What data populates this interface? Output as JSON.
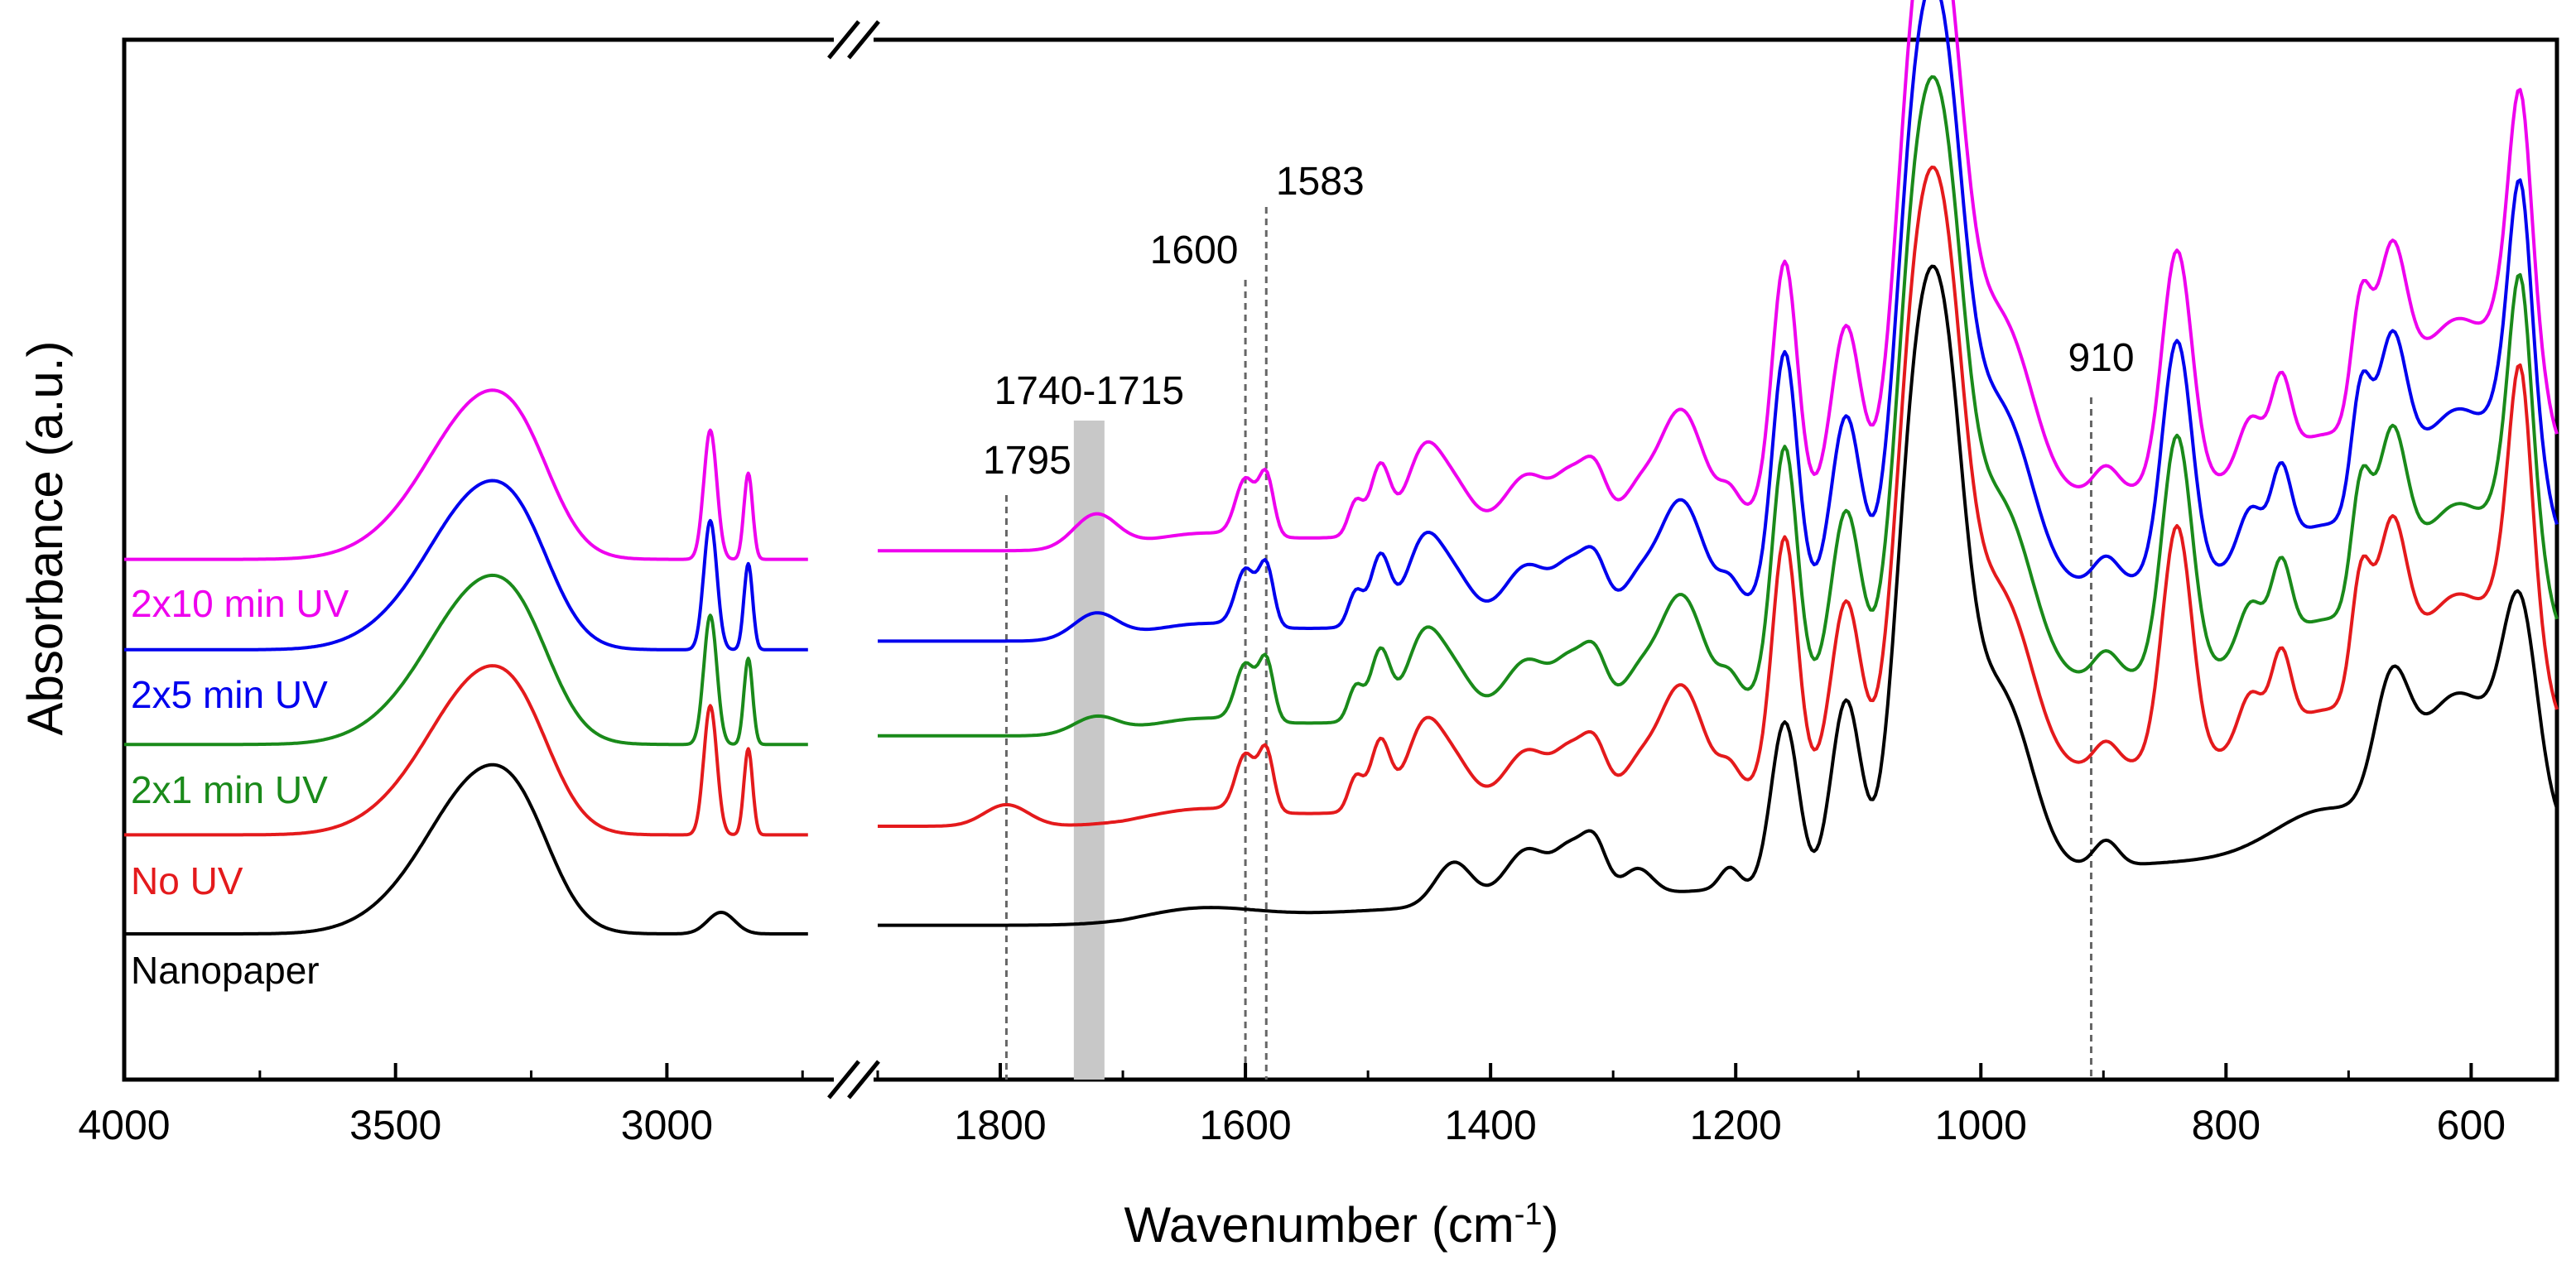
{
  "chart_data": {
    "type": "line",
    "xlabel": "Wavenumber (cm",
    "xlabel_sup": "-1",
    "xlabel_end": ")",
    "ylabel": "Absorbance (a.u.)",
    "x_reversed": true,
    "x_axis_break": [
      2700,
      1900
    ],
    "xlim_left": [
      4000,
      2700
    ],
    "xlim_right": [
      1900,
      530
    ],
    "x_ticks": [
      "4000",
      "3500",
      "3000",
      "1800",
      "1600",
      "1400",
      "1200",
      "1000",
      "800",
      "600"
    ],
    "x_tick_values": [
      4000,
      3500,
      3000,
      1800,
      1600,
      1400,
      1200,
      1000,
      800,
      600
    ],
    "y_ticks_visible": false,
    "grid": false,
    "annotations": [
      {
        "text": "1795",
        "x": 1795,
        "type": "dashed-line"
      },
      {
        "text": "1740-1715",
        "x_range": [
          1740,
          1715
        ],
        "type": "shaded-band"
      },
      {
        "text": "1600",
        "x": 1600,
        "type": "dashed-line"
      },
      {
        "text": "1583",
        "x": 1583,
        "type": "dashed-line"
      },
      {
        "text": "910",
        "x": 910,
        "type": "dashed-line"
      }
    ],
    "series": [
      {
        "name": "Nanopaper",
        "color": "#000000",
        "offset": 0.0,
        "variant": 0
      },
      {
        "name": "No UV",
        "color": "#e41a1c",
        "offset": 0.23,
        "variant": 1
      },
      {
        "name": "2x1 min UV",
        "color": "#1a8a1a",
        "offset": 0.44,
        "variant": 2
      },
      {
        "name": "2x5 min UV",
        "color": "#0000ee",
        "offset": 0.66,
        "variant": 3
      },
      {
        "name": "2x10 min UV",
        "color": "#ee00ee",
        "offset": 0.87,
        "variant": 4
      }
    ],
    "peaks_common": [
      {
        "x": 3340,
        "h": 0.3,
        "w": 85
      },
      {
        "x": 3260,
        "h": 0.12,
        "w": 60
      },
      {
        "x": 3450,
        "h": 0.08,
        "w": 90
      },
      {
        "x": 1640,
        "h": 0.03,
        "w": 45
      },
      {
        "x": 1430,
        "h": 0.1,
        "w": 15
      },
      {
        "x": 1370,
        "h": 0.12,
        "w": 18
      },
      {
        "x": 1335,
        "h": 0.1,
        "w": 12
      },
      {
        "x": 1315,
        "h": 0.12,
        "w": 10
      },
      {
        "x": 1280,
        "h": 0.06,
        "w": 12
      },
      {
        "x": 1205,
        "h": 0.05,
        "w": 8
      },
      {
        "x": 1160,
        "h": 0.38,
        "w": 11
      },
      {
        "x": 1110,
        "h": 0.42,
        "w": 12
      },
      {
        "x": 1055,
        "h": 0.9,
        "w": 16
      },
      {
        "x": 1030,
        "h": 0.9,
        "w": 16
      },
      {
        "x": 1000,
        "h": 0.35,
        "w": 25
      },
      {
        "x": 970,
        "h": 0.18,
        "w": 20
      },
      {
        "x": 898,
        "h": 0.06,
        "w": 10
      },
      {
        "x": 720,
        "h": 0.1,
        "w": 40
      },
      {
        "x": 665,
        "h": 0.28,
        "w": 14
      },
      {
        "x": 610,
        "h": 0.35,
        "w": 35
      },
      {
        "x": 560,
        "h": 0.45,
        "w": 14
      }
    ],
    "peaks_treated": [
      {
        "x": 2920,
        "h": 0.3,
        "w": 12
      },
      {
        "x": 2850,
        "h": 0.2,
        "w": 8
      },
      {
        "x": 1600,
        "h": 0.13,
        "w": 8
      },
      {
        "x": 1583,
        "h": 0.14,
        "w": 6
      },
      {
        "x": 1510,
        "h": 0.08,
        "w": 6
      },
      {
        "x": 1490,
        "h": 0.16,
        "w": 8
      },
      {
        "x": 1455,
        "h": 0.18,
        "w": 14
      },
      {
        "x": 1245,
        "h": 0.25,
        "w": 18
      },
      {
        "x": 1160,
        "h": 0.2,
        "w": 9
      },
      {
        "x": 840,
        "h": 0.55,
        "w": 12
      },
      {
        "x": 780,
        "h": 0.12,
        "w": 10
      },
      {
        "x": 755,
        "h": 0.18,
        "w": 8
      },
      {
        "x": 690,
        "h": 0.28,
        "w": 8
      },
      {
        "x": 665,
        "h": 0.12,
        "w": 10
      },
      {
        "x": 560,
        "h": 0.3,
        "w": 8
      }
    ],
    "nanopaper_extra": [
      {
        "x": 2900,
        "h": 0.05,
        "w": 25
      }
    ]
  }
}
